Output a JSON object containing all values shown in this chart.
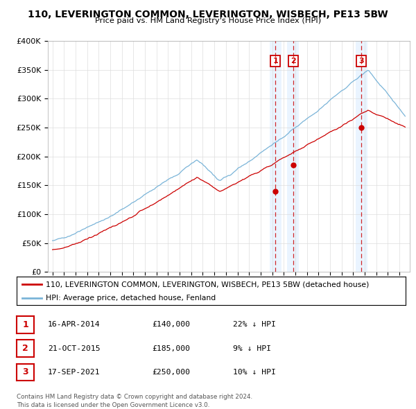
{
  "title": "110, LEVERINGTON COMMON, LEVERINGTON, WISBECH, PE13 5BW",
  "subtitle": "Price paid vs. HM Land Registry's House Price Index (HPI)",
  "ylim": [
    0,
    400000
  ],
  "yticks": [
    0,
    50000,
    100000,
    150000,
    200000,
    250000,
    300000,
    350000,
    400000
  ],
  "ytick_labels": [
    "£0",
    "£50K",
    "£100K",
    "£150K",
    "£200K",
    "£250K",
    "£300K",
    "£350K",
    "£400K"
  ],
  "hpi_color": "#7ab4d8",
  "price_color": "#cc0000",
  "vline_color": "#cc0000",
  "transactions": [
    {
      "date_num": 2014.29,
      "price": 140000,
      "label": "1"
    },
    {
      "date_num": 2015.81,
      "price": 185000,
      "label": "2"
    },
    {
      "date_num": 2021.72,
      "price": 250000,
      "label": "3"
    }
  ],
  "legend_property_label": "110, LEVERINGTON COMMON, LEVERINGTON, WISBECH, PE13 5BW (detached house)",
  "legend_hpi_label": "HPI: Average price, detached house, Fenland",
  "table_rows": [
    {
      "num": "1",
      "date": "16-APR-2014",
      "price": "£140,000",
      "hpi": "22% ↓ HPI"
    },
    {
      "num": "2",
      "date": "21-OCT-2015",
      "price": "£185,000",
      "hpi": "9% ↓ HPI"
    },
    {
      "num": "3",
      "date": "17-SEP-2021",
      "price": "£250,000",
      "hpi": "10% ↓ HPI"
    }
  ],
  "footer": "Contains HM Land Registry data © Crown copyright and database right 2024.\nThis data is licensed under the Open Government Licence v3.0.",
  "background_color": "#ffffff",
  "grid_color": "#dddddd",
  "shade_color": "#ddeeff"
}
